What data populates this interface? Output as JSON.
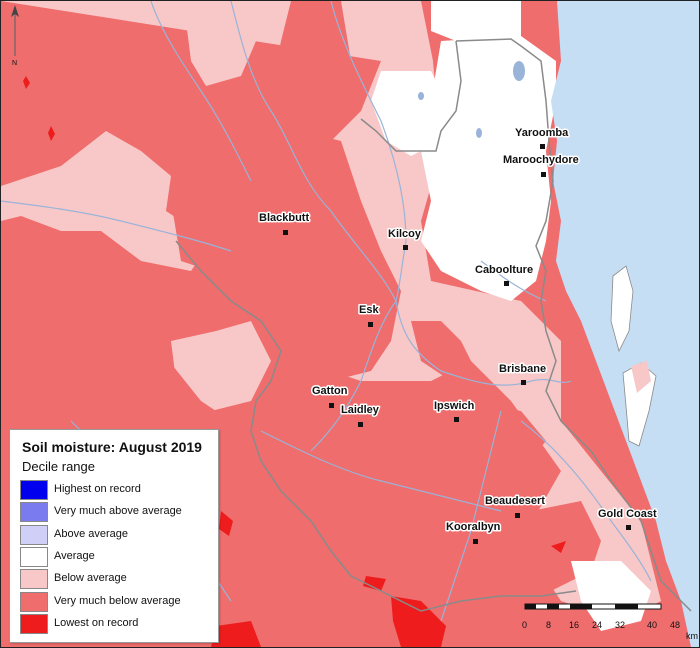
{
  "legend": {
    "title": "Soil moisture: August 2019",
    "subtitle": "Decile range",
    "items": [
      {
        "label": "Highest on record",
        "color": "#0000ee"
      },
      {
        "label": "Very much above average",
        "color": "#7b7bf0"
      },
      {
        "label": "Above average",
        "color": "#cfcff8"
      },
      {
        "label": "Average",
        "color": "#ffffff"
      },
      {
        "label": "Below average",
        "color": "#f8c8c8"
      },
      {
        "label": "Very much below average",
        "color": "#ef6d6d"
      },
      {
        "label": "Lowest on record",
        "color": "#ee1c1c"
      }
    ]
  },
  "towns": [
    {
      "name": "Yaroomba"
    },
    {
      "name": "Maroochydore"
    },
    {
      "name": "Blackbutt"
    },
    {
      "name": "Kilcoy"
    },
    {
      "name": "Caboolture"
    },
    {
      "name": "Esk"
    },
    {
      "name": "Brisbane"
    },
    {
      "name": "Gatton"
    },
    {
      "name": "Laidley"
    },
    {
      "name": "Ipswich"
    },
    {
      "name": "Beaudesert"
    },
    {
      "name": "Gold Coast"
    },
    {
      "name": "Kooralbyn"
    }
  ],
  "scale_bar": {
    "ticks": [
      "0",
      "8",
      "16",
      "24",
      "32",
      "40",
      "48"
    ],
    "unit": "km"
  },
  "north_arrow": {
    "label": "N"
  },
  "colors": {
    "ocean": "#c6def4",
    "river": "#9ab3d8",
    "boundary": "#8a8a8a"
  }
}
